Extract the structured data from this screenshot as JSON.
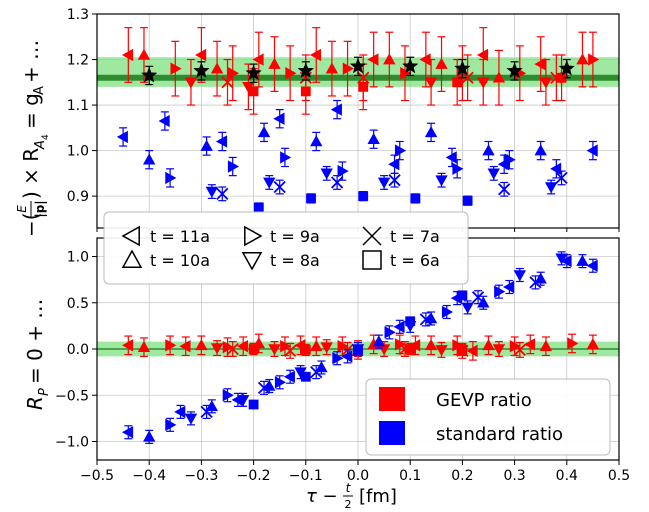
{
  "colors": {
    "gevp": "#ff0000",
    "standard": "#0000ff",
    "band_fill": "#7fe07f",
    "band_center": "#2e8b2e",
    "star": "#000000",
    "grid": "#c8c8c8"
  },
  "chart_data": [
    {
      "id": "top",
      "type": "scatter",
      "ylabel": "−(E/|p|) × R_{A4} = g_A + …",
      "xlim": [
        -0.5,
        0.5
      ],
      "ylim": [
        0.83,
        1.3
      ],
      "yticks": [
        0.9,
        1.0,
        1.1,
        1.2,
        1.3
      ],
      "ytick_labels": [
        "0.9",
        "1.0",
        "1.1",
        "1.2",
        "1.3"
      ],
      "grid": true,
      "band": {
        "center": 1.16,
        "lower": 1.14,
        "upper": 1.205
      },
      "stars": {
        "x": [
          -0.4,
          -0.3,
          -0.2,
          -0.1,
          0.0,
          0.1,
          0.2,
          0.3,
          0.4
        ],
        "y": [
          1.165,
          1.175,
          1.17,
          1.175,
          1.185,
          1.185,
          1.18,
          1.175,
          1.18
        ],
        "err": [
          0.02,
          0.02,
          0.02,
          0.02,
          0.02,
          0.02,
          0.02,
          0.02,
          0.02
        ]
      },
      "series": [
        {
          "color": "gevp",
          "marker": "triangle-left",
          "x": [
            -0.44,
            -0.3,
            -0.19,
            -0.08,
            0.03,
            0.13,
            0.24,
            0.35
          ],
          "y": [
            1.21,
            1.21,
            1.2,
            1.21,
            1.2,
            1.2,
            1.21,
            1.19
          ],
          "err": [
            0.06,
            0.06,
            0.06,
            0.06,
            0.06,
            0.06,
            0.06,
            0.06
          ]
        },
        {
          "color": "gevp",
          "marker": "triangle-up",
          "x": [
            -0.41,
            -0.27,
            -0.16,
            -0.05,
            0.06,
            0.16,
            0.27,
            0.43
          ],
          "y": [
            1.21,
            1.18,
            1.19,
            1.18,
            1.2,
            1.19,
            1.16,
            1.2
          ],
          "err": [
            0.06,
            0.06,
            0.06,
            0.06,
            0.06,
            0.06,
            0.06,
            0.06
          ]
        },
        {
          "color": "gevp",
          "marker": "triangle-right",
          "x": [
            -0.35,
            -0.24,
            -0.13,
            -0.02,
            0.09,
            0.2,
            0.31,
            0.45
          ],
          "y": [
            1.18,
            1.17,
            1.17,
            1.18,
            1.17,
            1.17,
            1.17,
            1.2
          ],
          "err": [
            0.06,
            0.06,
            0.06,
            0.06,
            0.06,
            0.06,
            0.06,
            0.06
          ]
        },
        {
          "color": "gevp",
          "marker": "x",
          "x": [
            -0.25,
            -0.1,
            0.01,
            0.21,
            0.38
          ],
          "y": [
            1.15,
            1.16,
            1.16,
            1.16,
            1.16
          ],
          "err": [
            0.05,
            0.05,
            0.05,
            0.05,
            0.05
          ]
        },
        {
          "color": "gevp",
          "marker": "triangle-down",
          "x": [
            -0.32,
            -0.21,
            0.14,
            0.24,
            0.36
          ],
          "y": [
            1.15,
            1.14,
            1.15,
            1.15,
            1.15
          ],
          "err": [
            0.05,
            0.05,
            0.05,
            0.05,
            0.05
          ]
        },
        {
          "color": "gevp",
          "marker": "square",
          "x": [
            -0.2,
            -0.1,
            0.01,
            0.19,
            0.39
          ],
          "y": [
            1.13,
            1.13,
            1.14,
            1.15,
            1.16
          ],
          "err": [
            0.05,
            0.05,
            0.05,
            0.05,
            0.05
          ]
        },
        {
          "color": "standard",
          "marker": "triangle-left",
          "x": [
            -0.45,
            -0.37,
            -0.26,
            -0.15,
            -0.04,
            0.07,
            0.18,
            0.28,
            0.38,
            0.45
          ],
          "y": [
            1.03,
            1.065,
            1.02,
            1.07,
            1.09,
            0.97,
            0.985,
            0.97,
            0.96,
            1.0
          ],
          "err": [
            0.02,
            0.02,
            0.02,
            0.02,
            0.02,
            0.02,
            0.02,
            0.02,
            0.02,
            0.02
          ]
        },
        {
          "color": "standard",
          "marker": "triangle-up",
          "x": [
            -0.4,
            -0.29,
            -0.18,
            -0.08,
            0.03,
            0.14,
            0.25,
            0.35
          ],
          "y": [
            0.98,
            1.01,
            1.04,
            1.02,
            1.025,
            1.04,
            1.0,
            1.0
          ],
          "err": [
            0.02,
            0.02,
            0.02,
            0.02,
            0.02,
            0.02,
            0.02,
            0.02
          ]
        },
        {
          "color": "standard",
          "marker": "triangle-right",
          "x": [
            -0.36,
            -0.24,
            -0.14,
            -0.03,
            0.08,
            0.19,
            0.29
          ],
          "y": [
            0.94,
            0.965,
            0.985,
            0.955,
            1.0,
            0.96,
            0.98
          ],
          "err": [
            0.02,
            0.02,
            0.02,
            0.02,
            0.02,
            0.02,
            0.02
          ]
        },
        {
          "color": "standard",
          "marker": "triangle-down",
          "x": [
            -0.28,
            -0.17,
            -0.06,
            0.05,
            0.16,
            0.26,
            0.37
          ],
          "y": [
            0.91,
            0.93,
            0.95,
            0.93,
            0.935,
            0.95,
            0.92
          ],
          "err": [
            0.015,
            0.015,
            0.015,
            0.015,
            0.015,
            0.015,
            0.015
          ]
        },
        {
          "color": "standard",
          "marker": "x",
          "x": [
            -0.26,
            -0.15,
            -0.04,
            0.07,
            0.28,
            0.39
          ],
          "y": [
            0.905,
            0.92,
            0.93,
            0.935,
            0.915,
            0.94
          ],
          "err": [
            0.015,
            0.015,
            0.015,
            0.015,
            0.015,
            0.015
          ]
        },
        {
          "color": "standard",
          "marker": "square",
          "x": [
            -0.19,
            -0.09,
            0.01,
            0.11,
            0.21
          ],
          "y": [
            0.875,
            0.895,
            0.9,
            0.895,
            0.89
          ],
          "err": [
            0.01,
            0.01,
            0.01,
            0.01,
            0.01
          ]
        }
      ]
    },
    {
      "id": "bottom",
      "type": "scatter",
      "ylabel": "R_P = 0 + …",
      "xlabel": "τ − t/2 [fm]",
      "xlim": [
        -0.5,
        0.5
      ],
      "ylim": [
        -1.2,
        1.2
      ],
      "xticks": [
        -0.5,
        -0.4,
        -0.3,
        -0.2,
        -0.1,
        0.0,
        0.1,
        0.2,
        0.3,
        0.4,
        0.5
      ],
      "xtick_labels": [
        "−0.5",
        "−0.4",
        "−0.3",
        "−0.2",
        "−0.1",
        "0.0",
        "0.1",
        "0.2",
        "0.3",
        "0.4",
        "0.5"
      ],
      "yticks": [
        -1.0,
        -0.5,
        0.0,
        0.5,
        1.0
      ],
      "ytick_labels": [
        "−1.0",
        "−0.5",
        "0.0",
        "0.5",
        "1.0"
      ],
      "grid": true,
      "band": {
        "center": 0.0,
        "lower": -0.08,
        "upper": 0.08
      },
      "series": [
        {
          "color": "gevp",
          "marker": "triangle-left",
          "x": [
            -0.44,
            -0.33,
            -0.22,
            -0.11,
            0.0,
            0.11,
            0.22,
            0.33
          ],
          "y": [
            0.04,
            0.03,
            0.03,
            0.04,
            -0.01,
            0.04,
            -0.02,
            0.05
          ],
          "err": [
            0.1,
            0.1,
            0.1,
            0.1,
            0.1,
            0.1,
            0.1,
            0.1
          ]
        },
        {
          "color": "gevp",
          "marker": "triangle-up",
          "x": [
            -0.41,
            -0.3,
            -0.19,
            -0.08,
            0.03,
            0.14,
            0.25,
            0.36,
            0.45
          ],
          "y": [
            0.02,
            0.04,
            0.06,
            0.03,
            0.05,
            0.04,
            0.04,
            0.03,
            0.05
          ],
          "err": [
            0.1,
            0.1,
            0.1,
            0.1,
            0.1,
            0.1,
            0.1,
            0.1,
            0.1
          ]
        },
        {
          "color": "gevp",
          "marker": "triangle-right",
          "x": [
            -0.36,
            -0.25,
            -0.14,
            -0.03,
            0.08,
            0.19,
            0.3,
            0.41
          ],
          "y": [
            0.04,
            0.02,
            0.03,
            0.03,
            0.05,
            0.04,
            0.03,
            0.06
          ],
          "err": [
            0.1,
            0.1,
            0.1,
            0.1,
            0.1,
            0.1,
            0.1,
            0.1
          ]
        },
        {
          "color": "gevp",
          "marker": "triangle-down",
          "x": [
            -0.27,
            -0.16,
            -0.06,
            0.05,
            0.16,
            0.27
          ],
          "y": [
            0.01,
            0.0,
            0.02,
            0.0,
            -0.01,
            0.0
          ],
          "err": [
            0.08,
            0.08,
            0.08,
            0.08,
            0.08,
            0.08
          ]
        },
        {
          "color": "gevp",
          "marker": "x",
          "x": [
            -0.24,
            -0.13,
            -0.02,
            0.09,
            0.2,
            0.31
          ],
          "y": [
            0.0,
            -0.02,
            -0.01,
            0.0,
            -0.02,
            -0.01
          ],
          "err": [
            0.08,
            0.08,
            0.08,
            0.08,
            0.08,
            0.08
          ]
        },
        {
          "color": "gevp",
          "marker": "square",
          "x": [
            -0.2,
            -0.1,
            0.0,
            0.1,
            0.2
          ],
          "y": [
            0.0,
            -0.01,
            -0.02,
            0.0,
            -0.01
          ],
          "err": [
            0.06,
            0.06,
            0.06,
            0.06,
            0.06
          ]
        },
        {
          "color": "standard",
          "marker": "triangle-left",
          "x": [
            -0.44,
            -0.34,
            -0.23,
            -0.13,
            -0.02,
            0.08,
            0.19,
            0.29,
            0.4,
            0.45
          ],
          "y": [
            -0.9,
            -0.68,
            -0.55,
            -0.3,
            -0.08,
            0.24,
            0.55,
            0.67,
            0.95,
            0.9
          ],
          "err": [
            0.07,
            0.07,
            0.07,
            0.07,
            0.07,
            0.07,
            0.07,
            0.07,
            0.07,
            0.07
          ]
        },
        {
          "color": "standard",
          "marker": "triangle-up",
          "x": [
            -0.4,
            -0.28,
            -0.17,
            -0.07,
            0.04,
            0.14,
            0.24,
            0.35,
            0.43
          ],
          "y": [
            -0.95,
            -0.62,
            -0.4,
            -0.2,
            0.08,
            0.33,
            0.5,
            0.76,
            0.95
          ],
          "err": [
            0.07,
            0.07,
            0.07,
            0.07,
            0.07,
            0.07,
            0.07,
            0.07,
            0.07
          ]
        },
        {
          "color": "standard",
          "marker": "triangle-right",
          "x": [
            -0.36,
            -0.25,
            -0.15,
            -0.04,
            0.06,
            0.17,
            0.27
          ],
          "y": [
            -0.82,
            -0.5,
            -0.36,
            -0.1,
            0.18,
            0.4,
            0.62
          ],
          "err": [
            0.07,
            0.07,
            0.07,
            0.07,
            0.07,
            0.07,
            0.07
          ]
        },
        {
          "color": "standard",
          "marker": "triangle-down",
          "x": [
            -0.32,
            -0.22,
            -0.11,
            0.0,
            0.1,
            0.21,
            0.31,
            0.39
          ],
          "y": [
            -0.75,
            -0.55,
            -0.25,
            0.0,
            0.25,
            0.45,
            0.8,
            0.98
          ],
          "err": [
            0.07,
            0.07,
            0.07,
            0.07,
            0.07,
            0.07,
            0.07,
            0.07
          ]
        },
        {
          "color": "standard",
          "marker": "x",
          "x": [
            -0.29,
            -0.18,
            -0.08,
            0.13,
            0.23,
            0.34
          ],
          "y": [
            -0.68,
            -0.42,
            -0.25,
            0.32,
            0.56,
            0.72
          ],
          "err": [
            0.07,
            0.07,
            0.07,
            0.07,
            0.07,
            0.07
          ]
        },
        {
          "color": "standard",
          "marker": "square",
          "x": [
            -0.2,
            -0.1,
            0.0,
            0.1,
            0.2
          ],
          "y": [
            -0.6,
            -0.3,
            -0.02,
            0.3,
            0.58
          ],
          "err": [
            0.03,
            0.03,
            0.03,
            0.03,
            0.03
          ]
        }
      ]
    }
  ],
  "legend_markers": {
    "items": [
      {
        "marker": "triangle-left",
        "label": "t = 11a"
      },
      {
        "marker": "triangle-right",
        "label": "t = 9a"
      },
      {
        "marker": "x",
        "label": "t = 7a"
      },
      {
        "marker": "triangle-up",
        "label": "t = 10a"
      },
      {
        "marker": "triangle-down",
        "label": "t = 8a"
      },
      {
        "marker": "square",
        "label": "t = 6a"
      }
    ]
  },
  "legend_colors": {
    "items": [
      {
        "color": "gevp",
        "label": "GEVP ratio"
      },
      {
        "color": "standard",
        "label": "standard ratio"
      }
    ]
  }
}
